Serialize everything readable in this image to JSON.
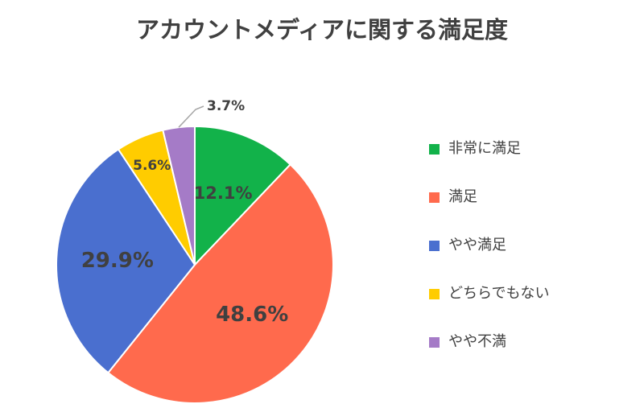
{
  "chart_data": {
    "type": "pie",
    "title": "アカウントメディアに関する満足度",
    "slices": [
      {
        "label": "非常に満足",
        "value": 12.1,
        "value_label": "12.1%",
        "color": "#12B24A"
      },
      {
        "label": "満足",
        "value": 48.6,
        "value_label": "48.6%",
        "color": "#FF6A4D"
      },
      {
        "label": "やや満足",
        "value": 29.9,
        "value_label": "29.9%",
        "color": "#4A6FCF"
      },
      {
        "label": "どちらでもない",
        "value": 5.6,
        "value_label": "5.6%",
        "color": "#FFCC00"
      },
      {
        "label": "やや不満",
        "value": 3.7,
        "value_label": "3.7%",
        "color": "#A57BC7"
      }
    ],
    "legend_position": "right",
    "start_angle": "12 o'clock",
    "direction": "clockwise"
  }
}
